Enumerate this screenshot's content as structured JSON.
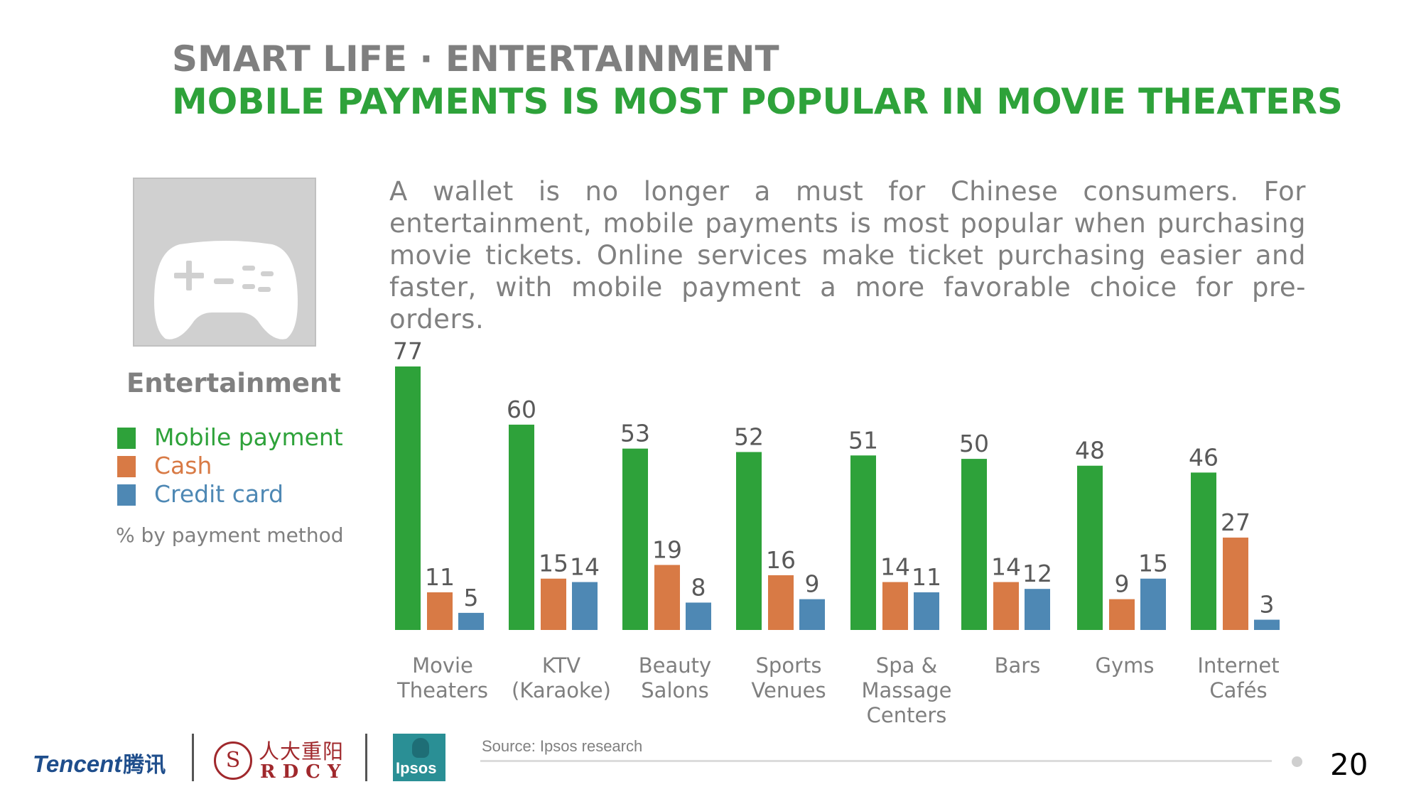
{
  "header": {
    "title": "SMART LIFE · ENTERTAINMENT",
    "subtitle": "MOBILE PAYMENTS IS MOST POPULAR IN MOVIE THEATERS"
  },
  "sidebar": {
    "icon": "gamepad-icon",
    "label": "Entertainment",
    "legend": [
      {
        "label": "Mobile payment",
        "color": "#2ea23a"
      },
      {
        "label": "Cash",
        "color": "#d87a45"
      },
      {
        "label": "Credit card",
        "color": "#4e88b4"
      }
    ],
    "unit_note": "% by payment method"
  },
  "description": "A wallet is no longer a must for Chinese consumers. For entertainment, mobile payments is most popular when purchasing movie tickets. Online services make ticket purchasing easier and faster, with mobile payment a more favorable choice for pre-orders.",
  "chart_data": {
    "type": "bar",
    "categories": [
      [
        "Movie",
        "Theaters"
      ],
      [
        "KTV",
        "(Karaoke)"
      ],
      [
        "Beauty",
        "Salons"
      ],
      [
        "Sports",
        "Venues"
      ],
      [
        "Spa &",
        "Massage",
        "Centers"
      ],
      [
        "Bars"
      ],
      [
        "Gyms"
      ],
      [
        "Internet",
        "Cafés"
      ]
    ],
    "series": [
      {
        "name": "Mobile payment",
        "values": [
          77,
          60,
          53,
          52,
          51,
          50,
          48,
          46
        ],
        "color": "#2ea23a"
      },
      {
        "name": "Cash",
        "values": [
          11,
          15,
          19,
          16,
          14,
          14,
          9,
          27
        ],
        "color": "#d87a45"
      },
      {
        "name": "Credit card",
        "values": [
          5,
          14,
          8,
          9,
          11,
          12,
          15,
          3
        ],
        "color": "#4e88b4"
      }
    ],
    "ylim": [
      0,
      77
    ],
    "grid": false,
    "value_labels": true
  },
  "footer": {
    "source": "Source: Ipsos research",
    "page_number": "20",
    "logos": {
      "tencent": "Tencent",
      "tencent_cn": "腾讯",
      "rdcy_cn": "人大重阳",
      "rdcy_en": "RDCY",
      "ipsos": "Ipsos"
    }
  }
}
